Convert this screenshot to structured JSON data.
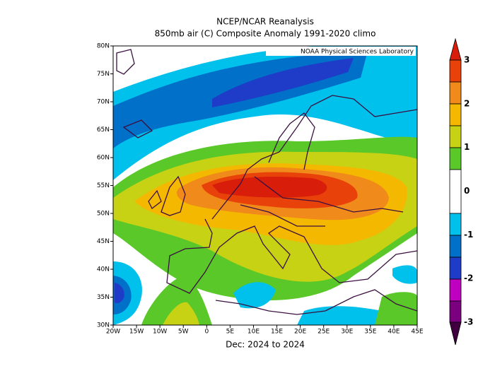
{
  "title": "NCEP/NCAR Reanalysis",
  "subtitle": "850mb air (C) Composite Anomaly 1991-2020 climo",
  "credit": "NOAA Physical Sciences Laboratory",
  "x_label": "Dec: 2024 to 2024",
  "lat_labels": [
    "80N",
    "75N",
    "70N",
    "65N",
    "60N",
    "55N",
    "50N",
    "45N",
    "40N",
    "35N",
    "30N"
  ],
  "lon_labels": [
    "20W",
    "15W",
    "10W",
    "5W",
    "0",
    "5E",
    "10E",
    "15E",
    "20E",
    "25E",
    "30E",
    "35E",
    "40E",
    "45E"
  ],
  "colorbar": {
    "labels": [
      "3",
      "2",
      "1",
      "0",
      "-1",
      "-2",
      "-3"
    ]
  }
}
